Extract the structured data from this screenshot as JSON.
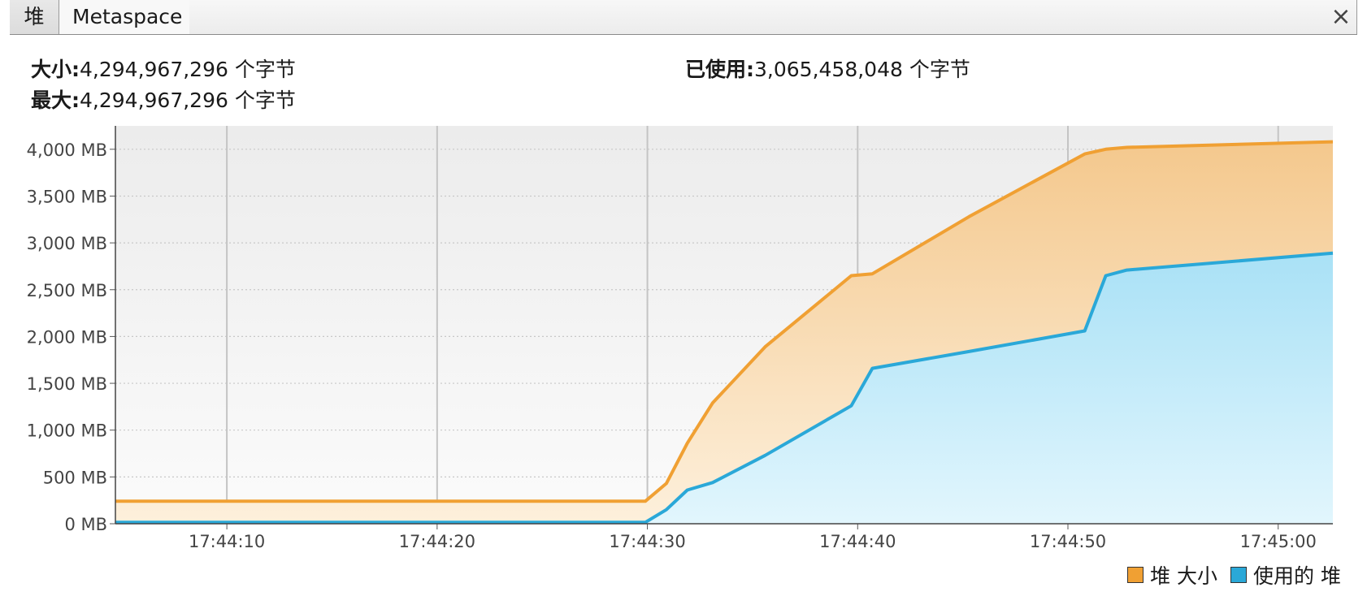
{
  "tabs": {
    "heap_label": "堆",
    "metaspace_label": "Metaspace",
    "close_glyph": "×"
  },
  "stats": {
    "size_label": "大小:",
    "size_value": "4,294,967,296 个字节",
    "max_label": "最大:",
    "max_value": "4,294,967,296 个字节",
    "used_label": "已使用:",
    "used_value": "3,065,458,048 个字节"
  },
  "colors": {
    "heap_size": "#f0a033",
    "used_heap": "#2aa8d8",
    "heap_size_fill": "#f5c98a",
    "used_heap_fill": "#b6e6f8"
  },
  "chart_data": {
    "type": "area",
    "y_unit": "MB",
    "ylim": [
      0,
      4250
    ],
    "xlim": [
      "17:44:04.7",
      "17:45:02.6"
    ],
    "y_ticks": [
      "0 MB",
      "500 MB",
      "1,000 MB",
      "1,500 MB",
      "2,000 MB",
      "2,500 MB",
      "3,000 MB",
      "3,500 MB",
      "4,000 MB"
    ],
    "y_tick_values": [
      0,
      500,
      1000,
      1500,
      2000,
      2500,
      3000,
      3500,
      4000
    ],
    "x_ticks": [
      "17:44:10",
      "17:44:20",
      "17:44:30",
      "17:44:40",
      "17:44:50",
      "17:45:00"
    ],
    "grid": true,
    "legend_position": "bottom-right",
    "series": [
      {
        "name": "堆 大小",
        "color": "#f0a033",
        "points": [
          [
            "17:44:04.7",
            240
          ],
          [
            "17:44:29.9",
            240
          ],
          [
            "17:44:30.9",
            430
          ],
          [
            "17:44:31.9",
            860
          ],
          [
            "17:44:33.1",
            1290
          ],
          [
            "17:44:35.6",
            1890
          ],
          [
            "17:44:39.7",
            2650
          ],
          [
            "17:44:40.7",
            2670
          ],
          [
            "17:44:45.3",
            3280
          ],
          [
            "17:44:50.8",
            3950
          ],
          [
            "17:44:51.8",
            4000
          ],
          [
            "17:44:52.8",
            4020
          ],
          [
            "17:45:02.6",
            4080
          ]
        ]
      },
      {
        "name": "使用的 堆",
        "color": "#2aa8d8",
        "points": [
          [
            "17:44:04.7",
            15
          ],
          [
            "17:44:29.9",
            15
          ],
          [
            "17:44:30.9",
            150
          ],
          [
            "17:44:31.9",
            360
          ],
          [
            "17:44:33.1",
            440
          ],
          [
            "17:44:35.6",
            730
          ],
          [
            "17:44:39.7",
            1260
          ],
          [
            "17:44:40.7",
            1660
          ],
          [
            "17:44:45.3",
            1840
          ],
          [
            "17:44:50.8",
            2060
          ],
          [
            "17:44:51.8",
            2650
          ],
          [
            "17:44:52.8",
            2710
          ],
          [
            "17:45:02.6",
            2890
          ]
        ]
      }
    ]
  }
}
